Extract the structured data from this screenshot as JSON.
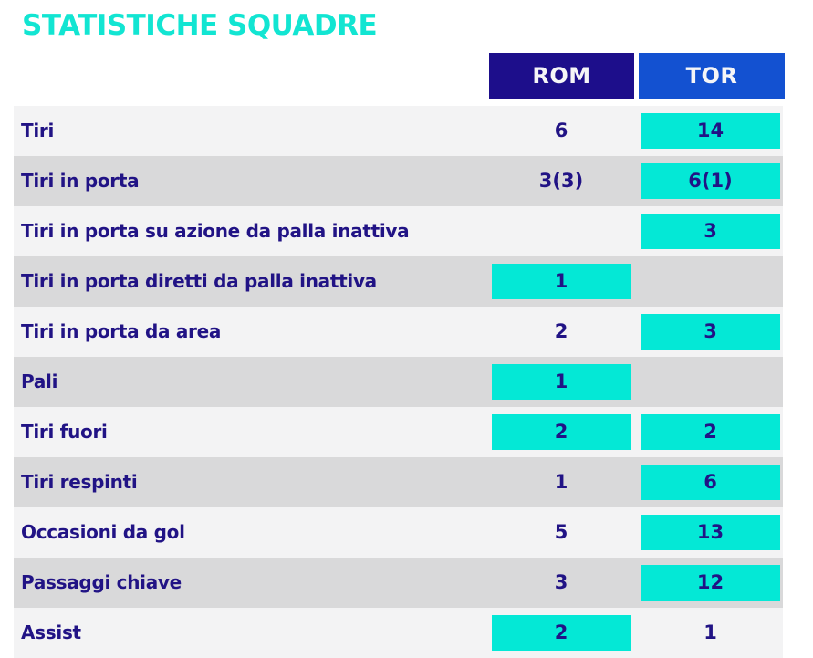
{
  "title": "STATISTICHE SQUADRE",
  "header": {
    "rom": "ROM",
    "tor": "TOR"
  },
  "colors": {
    "title_cyan": "#12e5d2",
    "highlight_cyan": "#04e8d6",
    "rom_header_bg": "#1d0e8b",
    "tor_header_bg": "#1351d1",
    "navy_text": "#211385",
    "row_light": "#f3f3f4",
    "row_dark": "#d9d9da"
  },
  "rows": [
    {
      "label": "Tiri",
      "rom": "6",
      "rom_hl": false,
      "tor": "14",
      "tor_hl": true
    },
    {
      "label": "Tiri in porta",
      "rom": "3(3)",
      "rom_hl": false,
      "tor": "6(1)",
      "tor_hl": true
    },
    {
      "label": "Tiri in porta su azione da palla inattiva",
      "rom": "",
      "rom_hl": false,
      "tor": "3",
      "tor_hl": true
    },
    {
      "label": "Tiri in porta diretti da palla inattiva",
      "rom": "1",
      "rom_hl": true,
      "tor": "",
      "tor_hl": false
    },
    {
      "label": "Tiri in porta da area",
      "rom": "2",
      "rom_hl": false,
      "tor": "3",
      "tor_hl": true
    },
    {
      "label": "Pali",
      "rom": "1",
      "rom_hl": true,
      "tor": "",
      "tor_hl": false
    },
    {
      "label": "Tiri fuori",
      "rom": "2",
      "rom_hl": true,
      "tor": "2",
      "tor_hl": true
    },
    {
      "label": "Tiri respinti",
      "rom": "1",
      "rom_hl": false,
      "tor": "6",
      "tor_hl": true
    },
    {
      "label": "Occasioni da gol",
      "rom": "5",
      "rom_hl": false,
      "tor": "13",
      "tor_hl": true
    },
    {
      "label": "Passaggi chiave",
      "rom": "3",
      "rom_hl": false,
      "tor": "12",
      "tor_hl": true
    },
    {
      "label": "Assist",
      "rom": "2",
      "rom_hl": true,
      "tor": "1",
      "tor_hl": false
    }
  ],
  "chart_data": {
    "type": "table",
    "title": "STATISTICHE SQUADRE",
    "columns": [
      "ROM",
      "TOR"
    ],
    "categories": [
      "Tiri",
      "Tiri in porta",
      "Tiri in porta su azione da palla inattiva",
      "Tiri in porta diretti da palla inattiva",
      "Tiri in porta da area",
      "Pali",
      "Tiri fuori",
      "Tiri respinti",
      "Occasioni da gol",
      "Passaggi chiave",
      "Assist"
    ],
    "series": [
      {
        "name": "ROM",
        "values": [
          "6",
          "3(3)",
          "",
          "1",
          "2",
          "1",
          "2",
          "1",
          "5",
          "3",
          "2"
        ],
        "highlighted": [
          false,
          false,
          false,
          true,
          false,
          true,
          true,
          false,
          false,
          false,
          true
        ]
      },
      {
        "name": "TOR",
        "values": [
          "14",
          "6(1)",
          "3",
          "",
          "3",
          "",
          "2",
          "6",
          "13",
          "12",
          "1"
        ],
        "highlighted": [
          true,
          true,
          true,
          false,
          true,
          false,
          true,
          true,
          true,
          true,
          false
        ]
      }
    ],
    "legend_position": "top",
    "grid": false
  }
}
